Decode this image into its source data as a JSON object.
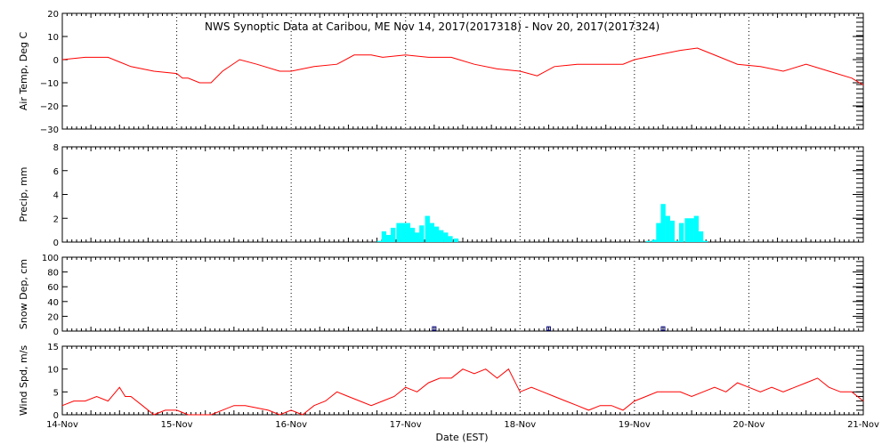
{
  "title": "NWS Synoptic Data at Caribou, ME    Nov 14, 2017(2017318) - Nov 20, 2017(2017324)",
  "xlabel": "Date (EST)",
  "x_ticks": [
    "14-Nov",
    "15-Nov",
    "16-Nov",
    "17-Nov",
    "18-Nov",
    "19-Nov",
    "20-Nov",
    "21-Nov"
  ],
  "colors": {
    "temp": "#ff0000",
    "precip": "#00ffff",
    "snow": "#000080",
    "wind": "#ff0000",
    "axis": "#000000",
    "grid": "#000000"
  },
  "chart_data": [
    {
      "type": "line",
      "ylabel": "Air Temp, Deg C",
      "ylim": [
        -30,
        20
      ],
      "yticks": [
        "20",
        "10",
        "0",
        "−10",
        "−20",
        "−30"
      ],
      "x_unit": "days since 14-Nov 00:00",
      "x": [
        0,
        0.2,
        0.4,
        0.5,
        0.6,
        0.8,
        1.0,
        1.05,
        1.1,
        1.2,
        1.3,
        1.4,
        1.55,
        1.7,
        1.9,
        2.0,
        2.2,
        2.4,
        2.55,
        2.7,
        2.8,
        3.0,
        3.2,
        3.4,
        3.6,
        3.8,
        4.0,
        4.15,
        4.3,
        4.5,
        4.7,
        4.9,
        5.0,
        5.2,
        5.4,
        5.55,
        5.6,
        5.75,
        5.9,
        6.1,
        6.3,
        6.5,
        6.7,
        6.9,
        7.0
      ],
      "values": [
        0,
        1,
        1,
        -1,
        -3,
        -5,
        -6,
        -8,
        -8,
        -10,
        -10,
        -5,
        0,
        -2,
        -5,
        -5,
        -3,
        -2,
        2,
        2,
        1,
        2,
        1,
        1,
        -2,
        -4,
        -5,
        -7,
        -3,
        -2,
        -2,
        -2,
        0,
        2,
        4,
        5,
        4,
        1,
        -2,
        -3,
        -5,
        -2,
        -5,
        -8,
        -11
      ]
    },
    {
      "type": "bar",
      "ylabel": "Precip, mm",
      "ylim": [
        0,
        8
      ],
      "yticks": [
        "8",
        "6",
        "4",
        "2",
        "0"
      ],
      "bar_width_days": 0.04167,
      "x": [
        2.75,
        2.79,
        2.83,
        2.87,
        2.92,
        2.96,
        3.0,
        3.04,
        3.08,
        3.12,
        3.17,
        3.21,
        3.25,
        3.29,
        3.33,
        3.37,
        3.42,
        5.1,
        5.15,
        5.19,
        5.23,
        5.27,
        5.31,
        5.35,
        5.39,
        5.44,
        5.48,
        5.52,
        5.56,
        5.6
      ],
      "values": [
        0.1,
        0.9,
        0.6,
        1.2,
        1.6,
        1.6,
        1.6,
        1.2,
        0.8,
        1.4,
        2.2,
        1.6,
        1.3,
        1.0,
        0.8,
        0.5,
        0.3,
        0.1,
        0.2,
        1.6,
        3.2,
        2.2,
        1.8,
        0.1,
        1.6,
        2.0,
        2.0,
        2.2,
        0.9,
        0.1
      ]
    },
    {
      "type": "scatter",
      "ylabel": "Snow Dep, cm",
      "ylim": [
        0,
        100
      ],
      "yticks": [
        "100",
        "80",
        "60",
        "40",
        "20",
        "0"
      ],
      "x": [
        3.25,
        4.25,
        5.25
      ],
      "values": [
        1,
        1,
        1
      ]
    },
    {
      "type": "line",
      "ylabel": "Wind Spd, m/s",
      "ylim": [
        0,
        15
      ],
      "yticks": [
        "15",
        "10",
        "5",
        "0"
      ],
      "x": [
        0,
        0.1,
        0.2,
        0.3,
        0.4,
        0.5,
        0.55,
        0.6,
        0.7,
        0.8,
        0.9,
        1.0,
        1.1,
        1.2,
        1.3,
        1.5,
        1.6,
        1.8,
        1.9,
        2.0,
        2.1,
        2.2,
        2.3,
        2.4,
        2.5,
        2.6,
        2.7,
        2.8,
        2.9,
        3.0,
        3.1,
        3.2,
        3.3,
        3.4,
        3.5,
        3.6,
        3.7,
        3.8,
        3.9,
        4.0,
        4.1,
        4.2,
        4.3,
        4.4,
        4.5,
        4.6,
        4.7,
        4.8,
        4.9,
        5.0,
        5.1,
        5.2,
        5.3,
        5.4,
        5.5,
        5.6,
        5.7,
        5.8,
        5.9,
        6.0,
        6.1,
        6.2,
        6.3,
        6.4,
        6.5,
        6.6,
        6.7,
        6.8,
        6.9,
        7.0
      ],
      "values": [
        2,
        3,
        3,
        4,
        3,
        6,
        4,
        4,
        2,
        0,
        1,
        1,
        0,
        0,
        0,
        2,
        2,
        1,
        0,
        1,
        0,
        2,
        3,
        5,
        4,
        3,
        2,
        3,
        4,
        6,
        5,
        7,
        8,
        8,
        10,
        9,
        10,
        8,
        10,
        5,
        6,
        5,
        4,
        3,
        2,
        1,
        2,
        2,
        1,
        3,
        4,
        5,
        5,
        5,
        4,
        5,
        6,
        5,
        7,
        6,
        5,
        6,
        5,
        6,
        7,
        8,
        6,
        5,
        5,
        3
      ]
    }
  ]
}
